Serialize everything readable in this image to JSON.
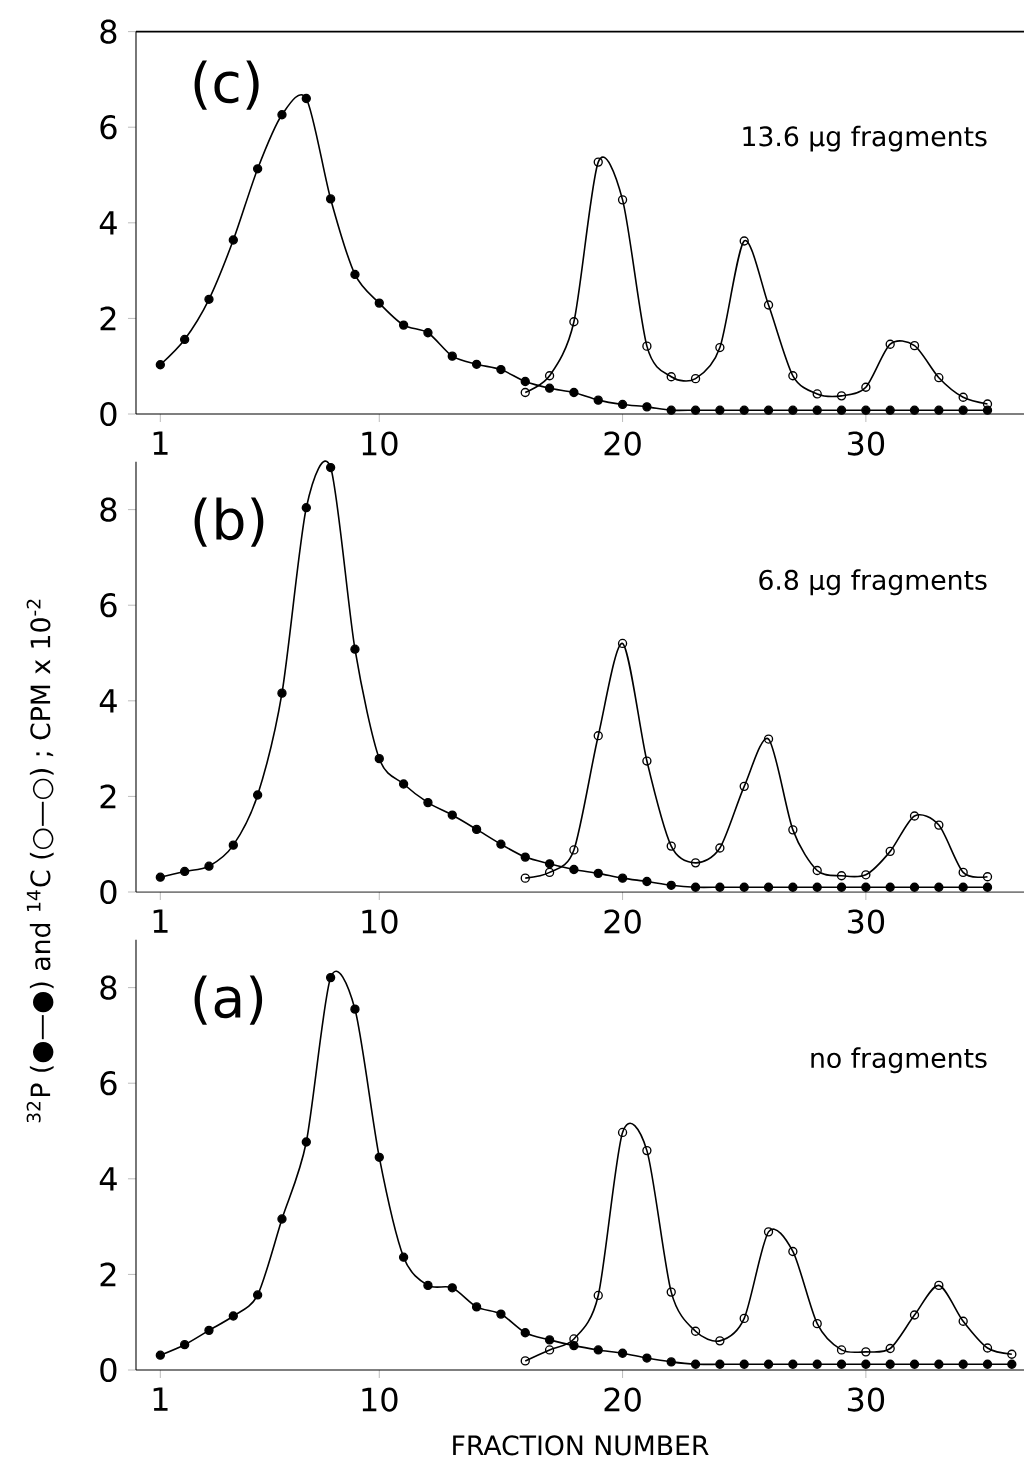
{
  "chart_data": [
    {
      "type": "line",
      "annotations": [
        "(c)",
        "13.6 μg fragments"
      ],
      "x": [
        1,
        2,
        3,
        4,
        5,
        6,
        7,
        8,
        9,
        10,
        11,
        12,
        13,
        14,
        15,
        16,
        17,
        18,
        19,
        20,
        21,
        22,
        23,
        24,
        25,
        26,
        27,
        28,
        29,
        30,
        31,
        32,
        33,
        34,
        35
      ],
      "xlim": [
        0,
        36.5
      ],
      "ylim": [
        0,
        8
      ],
      "xticks": [
        1,
        10,
        20,
        30
      ],
      "yticks": [
        0,
        2,
        4,
        6,
        8
      ],
      "marker": "circle",
      "ref_lines": [
        {
          "axis": "y",
          "value": 8
        }
      ],
      "series": [
        {
          "color": "#000000",
          "values": [
            1.03,
            1.56,
            2.4,
            3.64,
            5.13,
            6.26,
            6.6,
            4.5,
            2.92,
            2.32,
            1.86,
            1.7,
            1.21,
            1.04,
            0.93,
            0.68,
            0.54,
            0.45,
            0.29,
            0.2,
            0.15,
            0.08,
            0.08,
            0.08,
            0.08,
            0.08,
            0.08,
            0.08,
            0.08,
            0.08,
            0.08,
            0.08,
            0.08,
            0.08,
            0.08
          ]
        },
        {
          "color": "#000000",
          "x": [
            16,
            17,
            18,
            19,
            20,
            21,
            22,
            23,
            24,
            25,
            26,
            27,
            28,
            29,
            30,
            31,
            32,
            33,
            34,
            35
          ],
          "values": [
            0.45,
            0.8,
            1.93,
            5.27,
            4.48,
            1.42,
            0.78,
            0.74,
            1.39,
            3.62,
            2.28,
            0.8,
            0.42,
            0.38,
            0.56,
            1.46,
            1.43,
            0.76,
            0.35,
            0.21
          ]
        }
      ]
    },
    {
      "type": "line",
      "annotations": [
        "(b)",
        "6.8 μg fragments"
      ],
      "ylabel": "$^{32}$P (●—●) and $^{14}$C (○—○) ; CPM x 10$^{-2}$",
      "x": [
        1,
        2,
        3,
        4,
        5,
        6,
        7,
        8,
        9,
        10,
        11,
        12,
        13,
        14,
        15,
        16,
        17,
        18,
        19,
        20,
        21,
        22,
        23,
        24,
        25,
        26,
        27,
        28,
        29,
        30,
        31,
        32,
        33,
        34,
        35
      ],
      "xlim": [
        0,
        36.5
      ],
      "ylim": [
        0,
        9
      ],
      "xticks": [
        1,
        10,
        20,
        30
      ],
      "yticks": [
        0,
        2,
        4,
        6,
        8
      ],
      "marker": "circle",
      "series": [
        {
          "color": "#000000",
          "values": [
            0.31,
            0.43,
            0.54,
            0.98,
            2.03,
            4.16,
            8.04,
            8.88,
            5.08,
            2.79,
            2.26,
            1.87,
            1.61,
            1.31,
            1.0,
            0.73,
            0.59,
            0.47,
            0.39,
            0.29,
            0.22,
            0.14,
            0.1,
            0.1,
            0.1,
            0.1,
            0.1,
            0.1,
            0.1,
            0.1,
            0.1,
            0.1,
            0.1,
            0.1,
            0.1
          ]
        },
        {
          "color": "#000000",
          "x": [
            16,
            17,
            18,
            19,
            20,
            21,
            22,
            23,
            24,
            25,
            26,
            27,
            28,
            29,
            30,
            31,
            32,
            33,
            34,
            35
          ],
          "values": [
            0.29,
            0.41,
            0.88,
            3.27,
            5.2,
            2.74,
            0.96,
            0.61,
            0.92,
            2.21,
            3.2,
            1.3,
            0.45,
            0.34,
            0.36,
            0.85,
            1.59,
            1.4,
            0.41,
            0.32
          ]
        }
      ]
    },
    {
      "type": "line",
      "annotations": [
        "(a)",
        "no fragments"
      ],
      "xlabel": "FRACTION NUMBER",
      "x": [
        1,
        2,
        3,
        4,
        5,
        6,
        7,
        8,
        9,
        10,
        11,
        12,
        13,
        14,
        15,
        16,
        17,
        18,
        19,
        20,
        21,
        22,
        23,
        24,
        25,
        26,
        27,
        28,
        29,
        30,
        31,
        32,
        33,
        34,
        35,
        36
      ],
      "xlim": [
        0,
        36.5
      ],
      "ylim": [
        0,
        9
      ],
      "xticks": [
        1,
        10,
        20,
        30
      ],
      "yticks": [
        0,
        2,
        4,
        6,
        8
      ],
      "marker": "circle",
      "series": [
        {
          "color": "#000000",
          "values": [
            0.31,
            0.53,
            0.83,
            1.13,
            1.57,
            3.16,
            4.77,
            8.21,
            7.55,
            4.45,
            2.36,
            1.77,
            1.72,
            1.32,
            1.17,
            0.78,
            0.63,
            0.51,
            0.42,
            0.35,
            0.25,
            0.17,
            0.12,
            0.12,
            0.12,
            0.12,
            0.12,
            0.12,
            0.12,
            0.12,
            0.12,
            0.12,
            0.12,
            0.12,
            0.12,
            0.12
          ]
        },
        {
          "color": "#000000",
          "x": [
            16,
            17,
            18,
            19,
            20,
            21,
            22,
            23,
            24,
            25,
            26,
            27,
            28,
            29,
            30,
            31,
            32,
            33,
            34,
            35,
            36
          ],
          "values": [
            0.19,
            0.42,
            0.65,
            1.56,
            4.97,
            4.59,
            1.63,
            0.81,
            0.61,
            1.08,
            2.89,
            2.48,
            0.97,
            0.42,
            0.38,
            0.45,
            1.15,
            1.77,
            1.02,
            0.46,
            0.33
          ]
        }
      ]
    }
  ]
}
